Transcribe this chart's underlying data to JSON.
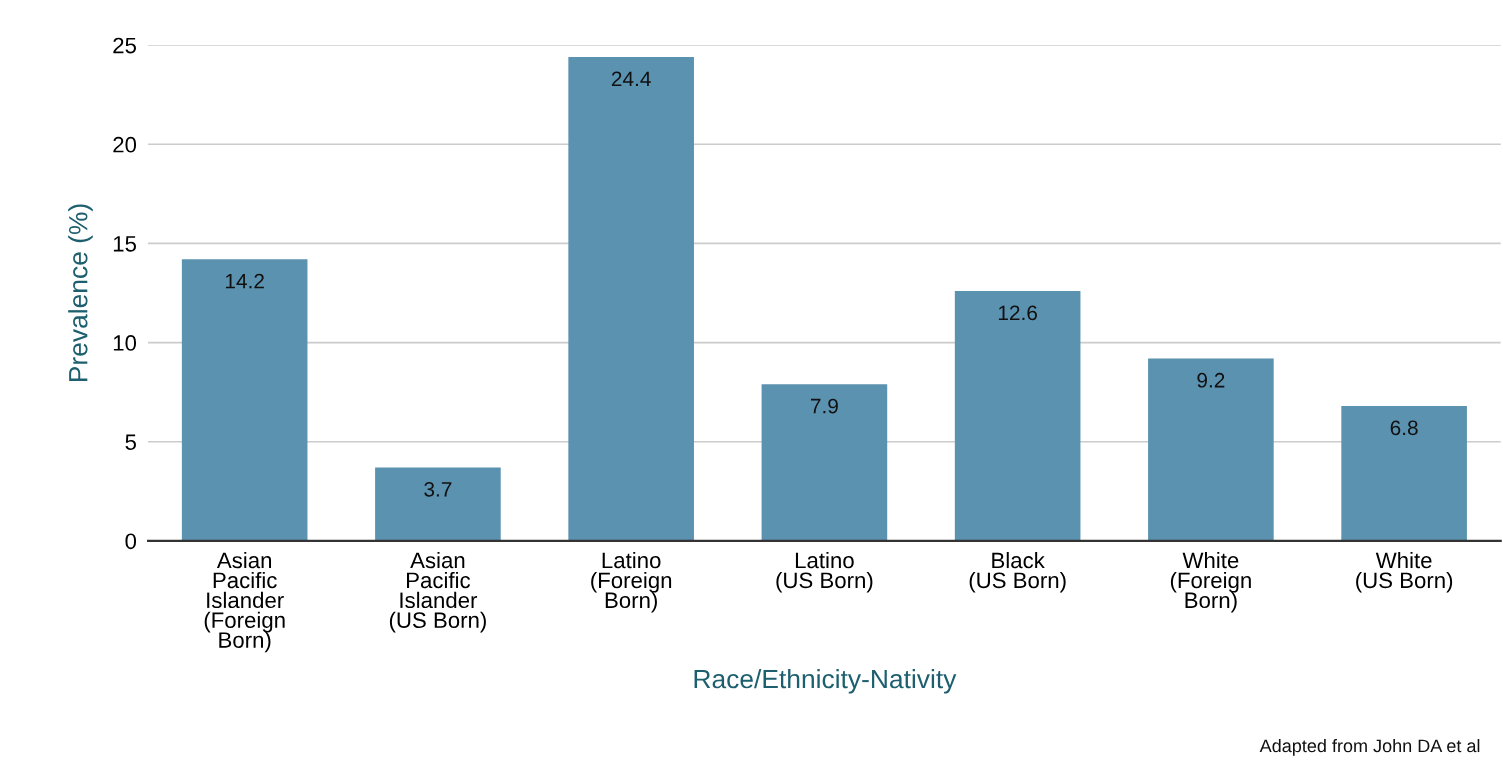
{
  "chart_data": {
    "type": "bar",
    "categories": [
      "Asian\nPacific\nIslander\n(Foreign\nBorn)",
      "Asian\nPacific\nIslander\n(US Born)",
      "Latino\n(Foreign\nBorn)",
      "Latino\n(US Born)",
      "Black\n(US Born)",
      "White\n(Foreign\nBorn)",
      "White\n(US Born)"
    ],
    "values": [
      14.2,
      3.7,
      24.4,
      7.9,
      12.6,
      9.2,
      6.8
    ],
    "color": "#5b92b0",
    "xlabel": "Race/Ethnicity-Nativity",
    "ylabel": "Prevalence (%)",
    "ylim": [
      0,
      25
    ],
    "yticks": [
      0,
      5,
      10,
      15,
      20,
      25
    ],
    "grid": "y",
    "data_labels": true,
    "annotations": [
      "Adapted from John DA et al"
    ]
  }
}
